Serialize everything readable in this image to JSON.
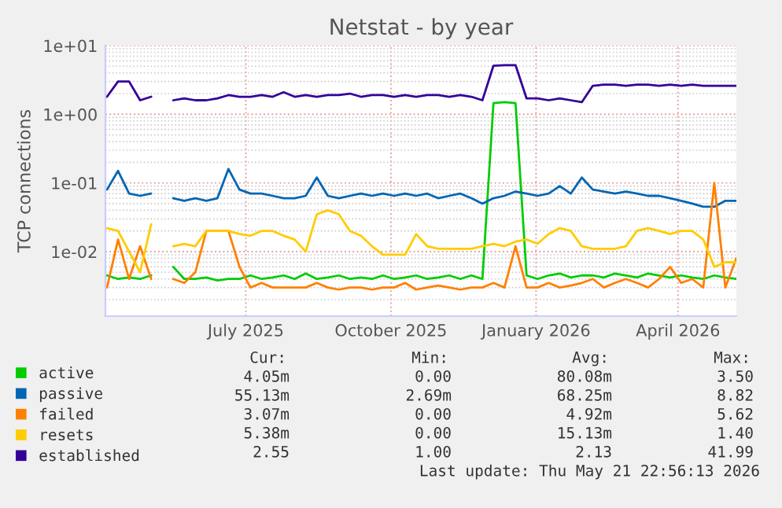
{
  "chart_data": {
    "type": "line",
    "title": "Netstat - by year",
    "ylabel": "TCP connections",
    "x": [
      "2025-04-04",
      "2025-04-11",
      "2025-04-18",
      "2025-04-25",
      "2025-05-02",
      "2025-05-09",
      "2025-05-16",
      "2025-05-23",
      "2025-05-30",
      "2025-06-06",
      "2025-06-13",
      "2025-06-20",
      "2025-06-27",
      "2025-07-04",
      "2025-07-11",
      "2025-07-18",
      "2025-07-25",
      "2025-08-01",
      "2025-08-08",
      "2025-08-15",
      "2025-08-22",
      "2025-08-29",
      "2025-09-05",
      "2025-09-12",
      "2025-09-19",
      "2025-09-26",
      "2025-10-03",
      "2025-10-10",
      "2025-10-17",
      "2025-10-24",
      "2025-10-31",
      "2025-11-07",
      "2025-11-14",
      "2025-11-21",
      "2025-11-28",
      "2025-12-05",
      "2025-12-12",
      "2025-12-19",
      "2025-12-26",
      "2026-01-02",
      "2026-01-09",
      "2026-01-16",
      "2026-01-23",
      "2026-01-30",
      "2026-02-06",
      "2026-02-13",
      "2026-02-20",
      "2026-02-27",
      "2026-03-06",
      "2026-03-13",
      "2026-03-20",
      "2026-03-27",
      "2026-04-03",
      "2026-04-10",
      "2026-04-17",
      "2026-04-24",
      "2026-05-01",
      "2026-05-08"
    ],
    "series": [
      {
        "name": "active",
        "color": "#00cc00",
        "values": [
          0.0045,
          0.004,
          0.0042,
          0.004,
          0.0045,
          null,
          0.006,
          0.004,
          0.004,
          0.0042,
          0.0038,
          0.004,
          0.004,
          0.0045,
          0.004,
          0.0042,
          0.0045,
          0.004,
          0.0048,
          0.004,
          0.0042,
          0.0045,
          0.004,
          0.0042,
          0.004,
          0.0045,
          0.004,
          0.0042,
          0.0045,
          0.004,
          0.0042,
          0.0045,
          0.004,
          0.0045,
          0.004,
          1.45,
          1.5,
          1.45,
          0.0045,
          0.004,
          0.0045,
          0.0048,
          0.0042,
          0.0045,
          0.0045,
          0.0042,
          0.0048,
          0.0045,
          0.0042,
          0.0048,
          0.0045,
          0.0042,
          0.0045,
          0.0042,
          0.004,
          0.0045,
          0.0042,
          0.004
        ]
      },
      {
        "name": "passive",
        "color": "#0066b3",
        "values": [
          0.08,
          0.15,
          0.07,
          0.065,
          0.07,
          null,
          0.06,
          0.055,
          0.06,
          0.055,
          0.06,
          0.16,
          0.08,
          0.07,
          0.07,
          0.065,
          0.06,
          0.06,
          0.065,
          0.12,
          0.065,
          0.06,
          0.065,
          0.07,
          0.065,
          0.07,
          0.065,
          0.07,
          0.065,
          0.07,
          0.06,
          0.065,
          0.07,
          0.06,
          0.05,
          0.06,
          0.065,
          0.075,
          0.07,
          0.065,
          0.07,
          0.09,
          0.07,
          0.12,
          0.08,
          0.075,
          0.07,
          0.075,
          0.07,
          0.065,
          0.065,
          0.06,
          0.055,
          0.05,
          0.045,
          0.045,
          0.055,
          0.055
        ]
      },
      {
        "name": "failed",
        "color": "#ff8000",
        "values": [
          0.003,
          0.015,
          0.004,
          0.012,
          0.004,
          null,
          0.004,
          0.0035,
          0.005,
          0.02,
          0.02,
          0.02,
          0.006,
          0.003,
          0.0035,
          0.003,
          0.003,
          0.003,
          0.003,
          0.0035,
          0.003,
          0.0028,
          0.003,
          0.003,
          0.0028,
          0.003,
          0.003,
          0.0035,
          0.0028,
          0.003,
          0.0032,
          0.003,
          0.0028,
          0.003,
          0.003,
          0.0035,
          0.003,
          0.012,
          0.003,
          0.003,
          0.0035,
          0.003,
          0.0032,
          0.0035,
          0.004,
          0.003,
          0.0035,
          0.004,
          0.0035,
          0.003,
          0.004,
          0.006,
          0.0035,
          0.004,
          0.003,
          0.1,
          0.003,
          0.008
        ]
      },
      {
        "name": "resets",
        "color": "#ffcc00",
        "values": [
          0.022,
          0.02,
          0.01,
          0.005,
          0.025,
          null,
          0.012,
          0.013,
          0.012,
          0.02,
          0.02,
          0.02,
          0.018,
          0.017,
          0.02,
          0.02,
          0.017,
          0.015,
          0.01,
          0.035,
          0.04,
          0.035,
          0.02,
          0.017,
          0.012,
          0.009,
          0.009,
          0.009,
          0.018,
          0.012,
          0.011,
          0.011,
          0.011,
          0.011,
          0.012,
          0.013,
          0.012,
          0.014,
          0.015,
          0.013,
          0.018,
          0.022,
          0.02,
          0.012,
          0.011,
          0.011,
          0.011,
          0.012,
          0.02,
          0.022,
          0.02,
          0.018,
          0.02,
          0.02,
          0.015,
          0.006,
          0.007,
          0.007
        ]
      },
      {
        "name": "established",
        "color": "#330099",
        "values": [
          1.8,
          3.0,
          3.0,
          1.6,
          1.8,
          null,
          1.6,
          1.7,
          1.6,
          1.6,
          1.7,
          1.9,
          1.8,
          1.8,
          1.9,
          1.8,
          2.1,
          1.8,
          1.9,
          1.8,
          1.9,
          1.9,
          2.0,
          1.8,
          1.9,
          1.9,
          1.8,
          1.9,
          1.8,
          1.9,
          1.9,
          1.8,
          1.9,
          1.8,
          1.6,
          5.1,
          5.2,
          5.2,
          1.7,
          1.7,
          1.6,
          1.7,
          1.6,
          1.5,
          2.6,
          2.7,
          2.7,
          2.6,
          2.7,
          2.7,
          2.6,
          2.7,
          2.6,
          2.7,
          2.6,
          2.6,
          2.6,
          2.6
        ]
      }
    ],
    "log": "y",
    "xlim": [
      "2025-04-03",
      "2026-05-08"
    ],
    "xticks": [
      {
        "value": "2025-07-01",
        "label": "July 2025"
      },
      {
        "value": "2025-10-01",
        "label": "October 2025"
      },
      {
        "value": "2026-01-01",
        "label": "January 2026"
      },
      {
        "value": "2026-04-01",
        "label": "April 2026"
      }
    ],
    "ylim": [
      0.00115,
      10
    ],
    "yticks": [
      {
        "value": 0.01,
        "label": "1e-02"
      },
      {
        "value": 0.1,
        "label": "1e-01"
      },
      {
        "value": 1,
        "label": "1e+00"
      },
      {
        "value": 10,
        "label": "1e+01"
      }
    ],
    "grid": true,
    "legend": "bottom left",
    "line_style": "solid",
    "marker": "none",
    "annotations": [
      "Cur:",
      "Min:",
      "Avg:",
      "Max:",
      "4.05m",
      "0.00",
      "80.08m",
      "3.50",
      "55.13m",
      "2.69m",
      "68.25m",
      "8.82",
      "3.07m",
      "0.00",
      "4.92m",
      "5.62",
      "5.38m",
      "0.00",
      "15.13m",
      "1.40",
      "2.55",
      "1.00",
      "2.13",
      "41.99",
      "Last update: Thu May 21 22:56:13 2026"
    ]
  }
}
